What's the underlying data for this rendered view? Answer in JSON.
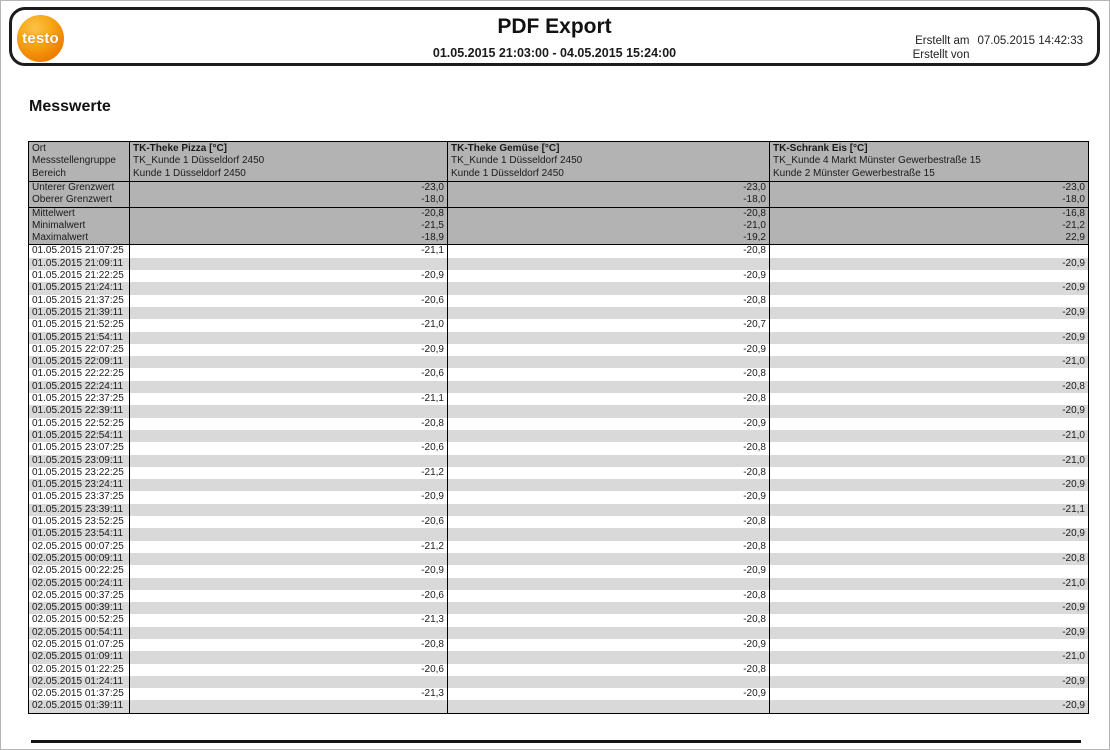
{
  "header": {
    "logo_text": "testo",
    "title": "PDF Export",
    "date_range": "01.05.2015 21:03:00 - 04.05.2015 15:24:00",
    "created_at_label": "Erstellt am",
    "created_at_value": "07.05.2015 14:42:33",
    "created_by_label": "Erstellt von",
    "created_by_value": ""
  },
  "section_title": "Messwerte",
  "colors": {
    "brand_orange": "#f08404",
    "header_gray": "#b3b3b3",
    "row_alt_gray": "#d9d9d9",
    "border_black": "#000000"
  },
  "table": {
    "meta_labels": [
      "Ort",
      "Messstellengruppe",
      "Bereich"
    ],
    "columns": [
      {
        "name": "TK-Theke Pizza [°C]",
        "group": "TK_Kunde 1 Düsseldorf 2450",
        "bereich": "Kunde 1 Düsseldorf 2450"
      },
      {
        "name": "TK-Theke Gemüse [°C]",
        "group": "TK_Kunde 1 Düsseldorf 2450",
        "bereich": "Kunde 1 Düsseldorf 2450"
      },
      {
        "name": "TK-Schrank Eis [°C]",
        "group": "TK_Kunde 4 Markt Münster Gewerbestraße 15",
        "bereich": "Kunde 2 Münster Gewerbestraße 15"
      }
    ],
    "limits": [
      {
        "label": "Unterer Grenzwert",
        "values": [
          "-23,0",
          "-23,0",
          "-23,0"
        ]
      },
      {
        "label": "Oberer Grenzwert",
        "values": [
          "-18,0",
          "-18,0",
          "-18,0"
        ]
      }
    ],
    "stats": [
      {
        "label": "Mittelwert",
        "values": [
          "-20,8",
          "-20,8",
          "-16,8"
        ]
      },
      {
        "label": "Minimalwert",
        "values": [
          "-21,5",
          "-21,0",
          "-21,2"
        ]
      },
      {
        "label": "Maximalwert",
        "values": [
          "-18,9",
          "-19,2",
          "22,9"
        ]
      }
    ],
    "rows": [
      {
        "time": "01.05.2015 21:07:25",
        "values": [
          "-21,1",
          "-20,8",
          ""
        ]
      },
      {
        "time": "01.05.2015 21:09:11",
        "values": [
          "",
          "",
          "-20,9"
        ]
      },
      {
        "time": "01.05.2015 21:22:25",
        "values": [
          "-20,9",
          "-20,9",
          ""
        ]
      },
      {
        "time": "01.05.2015 21:24:11",
        "values": [
          "",
          "",
          "-20,9"
        ]
      },
      {
        "time": "01.05.2015 21:37:25",
        "values": [
          "-20,6",
          "-20,8",
          ""
        ]
      },
      {
        "time": "01.05.2015 21:39:11",
        "values": [
          "",
          "",
          "-20,9"
        ]
      },
      {
        "time": "01.05.2015 21:52:25",
        "values": [
          "-21,0",
          "-20,7",
          ""
        ]
      },
      {
        "time": "01.05.2015 21:54:11",
        "values": [
          "",
          "",
          "-20,9"
        ]
      },
      {
        "time": "01.05.2015 22:07:25",
        "values": [
          "-20,9",
          "-20,9",
          ""
        ]
      },
      {
        "time": "01.05.2015 22:09:11",
        "values": [
          "",
          "",
          "-21,0"
        ]
      },
      {
        "time": "01.05.2015 22:22:25",
        "values": [
          "-20,6",
          "-20,8",
          ""
        ]
      },
      {
        "time": "01.05.2015 22:24:11",
        "values": [
          "",
          "",
          "-20,8"
        ]
      },
      {
        "time": "01.05.2015 22:37:25",
        "values": [
          "-21,1",
          "-20,8",
          ""
        ]
      },
      {
        "time": "01.05.2015 22:39:11",
        "values": [
          "",
          "",
          "-20,9"
        ]
      },
      {
        "time": "01.05.2015 22:52:25",
        "values": [
          "-20,8",
          "-20,9",
          ""
        ]
      },
      {
        "time": "01.05.2015 22:54:11",
        "values": [
          "",
          "",
          "-21,0"
        ]
      },
      {
        "time": "01.05.2015 23:07:25",
        "values": [
          "-20,6",
          "-20,8",
          ""
        ]
      },
      {
        "time": "01.05.2015 23:09:11",
        "values": [
          "",
          "",
          "-21,0"
        ]
      },
      {
        "time": "01.05.2015 23:22:25",
        "values": [
          "-21,2",
          "-20,8",
          ""
        ]
      },
      {
        "time": "01.05.2015 23:24:11",
        "values": [
          "",
          "",
          "-20,9"
        ]
      },
      {
        "time": "01.05.2015 23:37:25",
        "values": [
          "-20,9",
          "-20,9",
          ""
        ]
      },
      {
        "time": "01.05.2015 23:39:11",
        "values": [
          "",
          "",
          "-21,1"
        ]
      },
      {
        "time": "01.05.2015 23:52:25",
        "values": [
          "-20,6",
          "-20,8",
          ""
        ]
      },
      {
        "time": "01.05.2015 23:54:11",
        "values": [
          "",
          "",
          "-20,9"
        ]
      },
      {
        "time": "02.05.2015 00:07:25",
        "values": [
          "-21,2",
          "-20,8",
          ""
        ]
      },
      {
        "time": "02.05.2015 00:09:11",
        "values": [
          "",
          "",
          "-20,8"
        ]
      },
      {
        "time": "02.05.2015 00:22:25",
        "values": [
          "-20,9",
          "-20,9",
          ""
        ]
      },
      {
        "time": "02.05.2015 00:24:11",
        "values": [
          "",
          "",
          "-21,0"
        ]
      },
      {
        "time": "02.05.2015 00:37:25",
        "values": [
          "-20,6",
          "-20,8",
          ""
        ]
      },
      {
        "time": "02.05.2015 00:39:11",
        "values": [
          "",
          "",
          "-20,9"
        ]
      },
      {
        "time": "02.05.2015 00:52:25",
        "values": [
          "-21,3",
          "-20,8",
          ""
        ]
      },
      {
        "time": "02.05.2015 00:54:11",
        "values": [
          "",
          "",
          "-20,9"
        ]
      },
      {
        "time": "02.05.2015 01:07:25",
        "values": [
          "-20,8",
          "-20,9",
          ""
        ]
      },
      {
        "time": "02.05.2015 01:09:11",
        "values": [
          "",
          "",
          "-21,0"
        ]
      },
      {
        "time": "02.05.2015 01:22:25",
        "values": [
          "-20,6",
          "-20,8",
          ""
        ]
      },
      {
        "time": "02.05.2015 01:24:11",
        "values": [
          "",
          "",
          "-20,9"
        ]
      },
      {
        "time": "02.05.2015 01:37:25",
        "values": [
          "-21,3",
          "-20,9",
          ""
        ]
      },
      {
        "time": "02.05.2015 01:39:11",
        "values": [
          "",
          "",
          "-20,9"
        ]
      }
    ]
  }
}
